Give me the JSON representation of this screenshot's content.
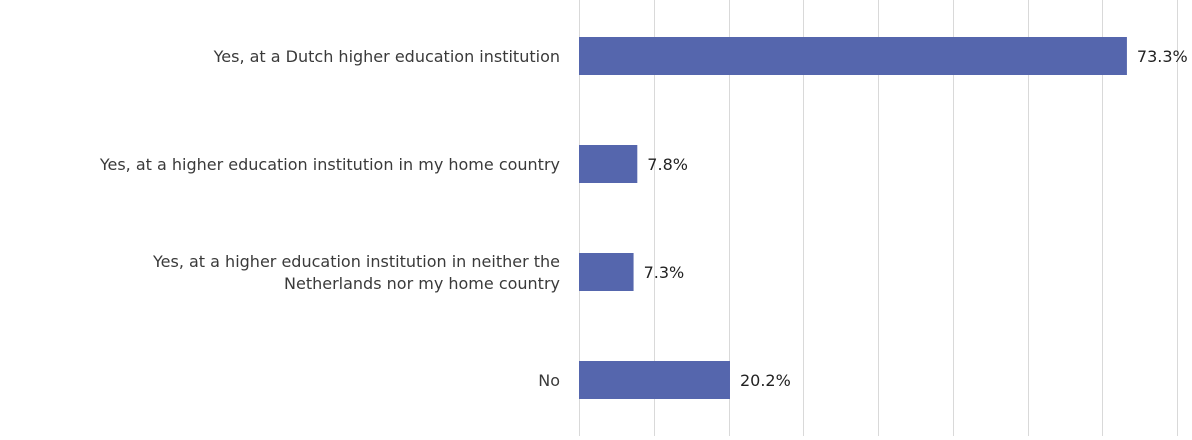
{
  "chart_data": {
    "type": "bar",
    "orientation": "horizontal",
    "categories": [
      "Yes, at a Dutch higher education institution",
      "Yes, at a higher education institution in my home country",
      "Yes, at a higher education institution in neither the Netherlands nor my home country",
      "No"
    ],
    "category_lines": [
      [
        "Yes, at a Dutch higher education institution"
      ],
      [
        "Yes, at a higher education institution in my home country"
      ],
      [
        "Yes, at a higher education institution in neither the",
        "Netherlands nor my home country"
      ],
      [
        "No"
      ]
    ],
    "values": [
      73.3,
      7.8,
      7.3,
      20.2
    ],
    "data_labels": [
      "73.3%",
      "7.8%",
      "7.3%",
      "20.2%"
    ],
    "xlim": [
      0,
      80
    ],
    "gridlines": [
      0,
      10,
      20,
      30,
      40,
      50,
      60,
      70,
      80
    ],
    "grid": true,
    "legend": "none",
    "title": "",
    "xlabel": "",
    "ylabel": "",
    "colors": {
      "bar": "#5566ad",
      "gridline": "#d9d9d9",
      "category_text": "#3a3a3a",
      "value_text": "#222222"
    }
  }
}
